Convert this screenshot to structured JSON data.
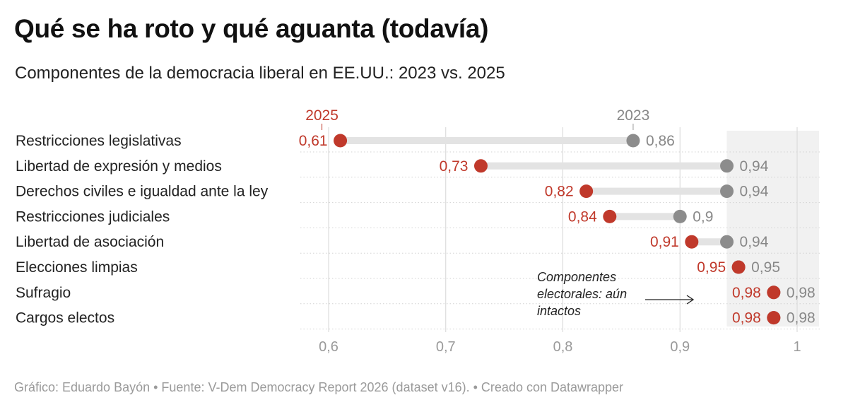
{
  "title": "Qué se ha roto y qué aguanta (todavía)",
  "subtitle": "Componentes de la democracia liberal en EE.UU.: 2023 vs. 2025",
  "footer": "Gráfico: Eduardo Bayón • Fuente: V-Dem Democracy Report 2026 (dataset v16). • Creado con Datawrapper",
  "colors": {
    "series_2025": "#c0392b",
    "series_2023": "#8c8c8c",
    "connector": "#e3e3e3",
    "highlight_band": "#f1f1f1",
    "gridline": "#d6d6d6"
  },
  "chart_data": {
    "type": "dot-range",
    "title": "Qué se ha roto y qué aguanta (todavía)",
    "subtitle": "Componentes de la democracia liberal en EE.UU.: 2023 vs. 2025",
    "categories": [
      "Restricciones legislativas",
      "Libertad de expresión y medios",
      "Derechos civiles e igualdad ante la ley",
      "Restricciones judiciales",
      "Libertad de asociación",
      "Elecciones limpias",
      "Sufragio",
      "Cargos electos"
    ],
    "series": [
      {
        "name": "2025",
        "values": [
          0.61,
          0.73,
          0.82,
          0.84,
          0.91,
          0.95,
          0.98,
          0.98
        ],
        "labels": [
          "0,61",
          "0,73",
          "0,82",
          "0,84",
          "0,91",
          "0,95",
          "0,98",
          "0,98"
        ]
      },
      {
        "name": "2023",
        "values": [
          0.86,
          0.94,
          0.94,
          0.9,
          0.94,
          0.95,
          0.98,
          0.98
        ],
        "labels": [
          "0,86",
          "0,94",
          "0,94",
          "0,9",
          "0,94",
          "0,95",
          "0,98",
          "0,98"
        ]
      }
    ],
    "xlim": [
      0.6,
      1.0
    ],
    "x_ticks": [
      0.6,
      0.7,
      0.8,
      0.9,
      1.0
    ],
    "x_tick_labels": [
      "0,6",
      "0,7",
      "0,8",
      "0,9",
      "1"
    ],
    "highlight_range": [
      0.94,
      1.0
    ],
    "annotation": {
      "lines": [
        "Componentes",
        "electorales: aún",
        "intactos"
      ]
    },
    "grid": true,
    "legend": "direct labels above first row"
  }
}
